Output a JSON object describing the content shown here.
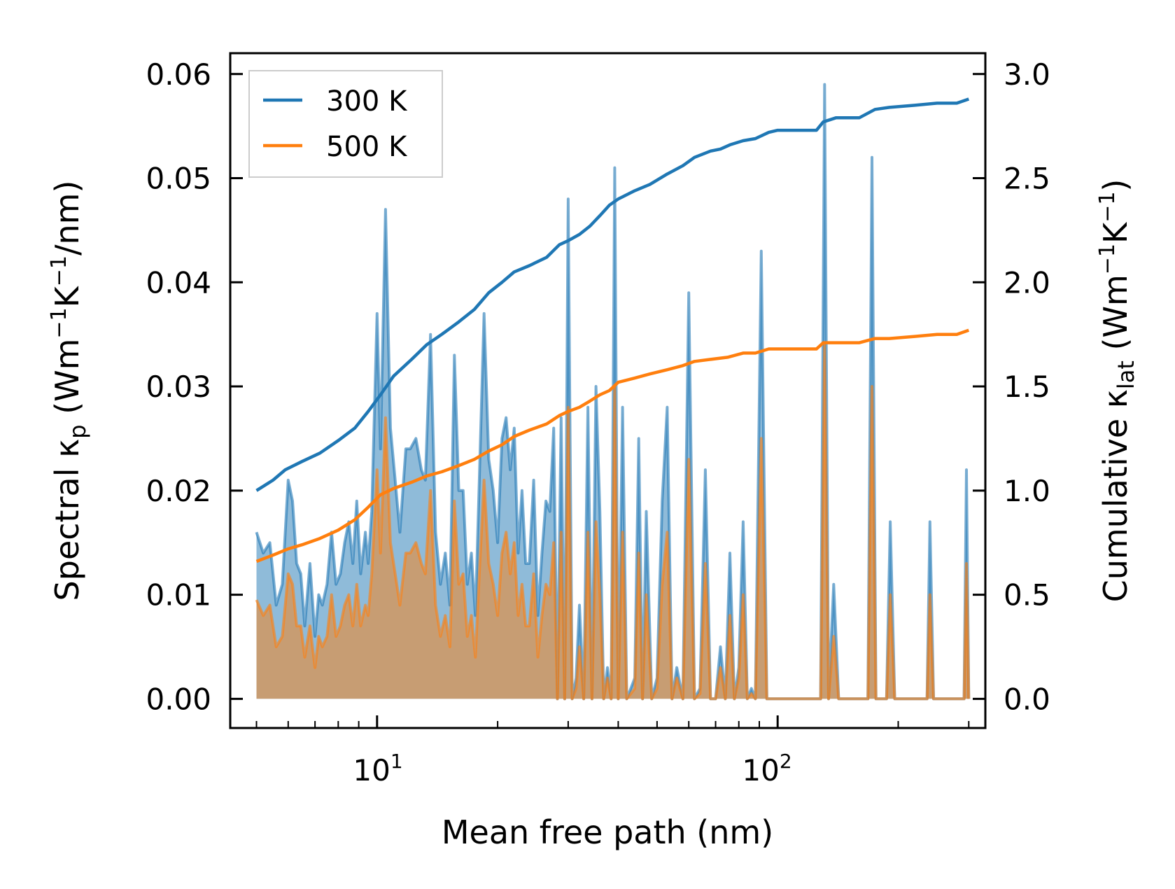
{
  "chart_data": {
    "type": "line",
    "xlabel": "Mean free path (nm)",
    "x_scale": "log",
    "xlim": [
      4.3,
      330
    ],
    "x_ticks": [
      10,
      100
    ],
    "x_tick_labels": [
      "10",
      "1",
      "10",
      "2"
    ],
    "y_left": {
      "label_main": "Spectral κ",
      "label_sub": "p",
      "label_unit_a": " (Wm",
      "label_sup_a": "−1",
      "label_unit_b": "K",
      "label_sup_b": "−1",
      "label_unit_c": "/nm)",
      "ylim": [
        -0.0028,
        0.062
      ],
      "ticks": [
        0.0,
        0.01,
        0.02,
        0.03,
        0.04,
        0.05,
        0.06
      ],
      "tick_labels": [
        "0.00",
        "0.01",
        "0.02",
        "0.03",
        "0.04",
        "0.05",
        "0.06"
      ]
    },
    "y_right": {
      "label_main": "Cumulative κ",
      "label_sub": "lat",
      "label_unit_a": " (Wm",
      "label_sup_a": "−1",
      "label_unit_b": "K",
      "label_sup_b": "−1",
      "label_unit_c": ")",
      "ylim": [
        -0.14,
        3.1
      ],
      "ticks": [
        0.0,
        0.5,
        1.0,
        1.5,
        2.0,
        2.5,
        3.0
      ],
      "tick_labels": [
        "0.0",
        "0.5",
        "1.0",
        "1.5",
        "2.0",
        "2.5",
        "3.0"
      ]
    },
    "legend": {
      "placement": "top-left",
      "entries": [
        "300 K",
        "500 K"
      ]
    },
    "series": [
      {
        "name": "300 K",
        "kind": "cumulative",
        "axis": "right",
        "color": "#1f77b4",
        "x": [
          5.0,
          5.5,
          5.9,
          6.5,
          7.2,
          8.0,
          8.8,
          9.5,
          10.2,
          11.0,
          12.2,
          13.3,
          14.5,
          16.0,
          17.5,
          19.0,
          20.5,
          22.0,
          24.0,
          26.5,
          28.5,
          30.0,
          32.0,
          34.0,
          36.0,
          38.0,
          40.0,
          44.0,
          48.0,
          53.0,
          58.0,
          62.0,
          68.0,
          72.0,
          76.0,
          82.0,
          88.0,
          95.0,
          100.0,
          110.0,
          125.0,
          130.0,
          140.0,
          160.0,
          175.0,
          190.0,
          220.0,
          250.0,
          280.0,
          300.0
        ],
        "values": [
          1.0,
          1.05,
          1.1,
          1.14,
          1.18,
          1.24,
          1.3,
          1.38,
          1.46,
          1.55,
          1.63,
          1.7,
          1.75,
          1.81,
          1.87,
          1.95,
          2.0,
          2.05,
          2.08,
          2.12,
          2.18,
          2.2,
          2.23,
          2.27,
          2.32,
          2.37,
          2.4,
          2.44,
          2.47,
          2.52,
          2.56,
          2.6,
          2.63,
          2.64,
          2.66,
          2.68,
          2.69,
          2.72,
          2.73,
          2.73,
          2.73,
          2.77,
          2.79,
          2.79,
          2.83,
          2.84,
          2.85,
          2.86,
          2.86,
          2.88
        ]
      },
      {
        "name": "500 K",
        "kind": "cumulative",
        "axis": "right",
        "color": "#ff7f0e",
        "x": [
          5.0,
          5.5,
          6.0,
          6.5,
          7.2,
          8.0,
          8.8,
          9.5,
          10.2,
          11.0,
          12.2,
          13.3,
          14.5,
          16.0,
          17.5,
          19.0,
          20.5,
          22.0,
          24.0,
          26.5,
          28.5,
          30.0,
          32.0,
          34.0,
          36.0,
          38.0,
          40.0,
          44.0,
          48.0,
          53.0,
          58.0,
          62.0,
          68.0,
          75.0,
          82.0,
          88.0,
          95.0,
          110.0,
          125.0,
          130.0,
          140.0,
          160.0,
          175.0,
          190.0,
          220.0,
          250.0,
          280.0,
          300.0
        ],
        "values": [
          0.66,
          0.69,
          0.72,
          0.74,
          0.77,
          0.81,
          0.86,
          0.92,
          0.98,
          1.01,
          1.04,
          1.07,
          1.09,
          1.12,
          1.15,
          1.19,
          1.22,
          1.26,
          1.29,
          1.32,
          1.36,
          1.38,
          1.4,
          1.43,
          1.46,
          1.48,
          1.52,
          1.54,
          1.56,
          1.58,
          1.6,
          1.62,
          1.63,
          1.64,
          1.66,
          1.66,
          1.68,
          1.68,
          1.68,
          1.71,
          1.71,
          1.71,
          1.73,
          1.73,
          1.74,
          1.75,
          1.75,
          1.77
        ]
      },
      {
        "name": "300 K spectral",
        "kind": "spectral",
        "axis": "left",
        "color": "#1f77b4",
        "x": [
          5.0,
          5.2,
          5.4,
          5.6,
          5.8,
          6.0,
          6.15,
          6.3,
          6.45,
          6.6,
          6.8,
          7.0,
          7.15,
          7.3,
          7.5,
          7.7,
          7.9,
          8.1,
          8.3,
          8.5,
          8.7,
          8.9,
          9.1,
          9.35,
          9.5,
          9.7,
          10.0,
          10.2,
          10.5,
          10.8,
          11.1,
          11.4,
          11.8,
          12.1,
          12.5,
          12.9,
          13.2,
          13.6,
          14.0,
          14.4,
          14.8,
          15.2,
          15.6,
          16.0,
          16.4,
          16.8,
          17.2,
          17.6,
          18.0,
          18.5,
          19.0,
          19.5,
          20.0,
          20.5,
          21.0,
          21.5,
          22.0,
          22.5,
          23.0,
          23.5,
          24.0,
          24.6,
          25.2,
          25.8,
          26.4,
          27.0,
          27.6,
          28.2,
          28.8,
          29.4,
          30.0,
          30.7,
          31.4,
          32.0,
          32.8,
          33.6,
          34.4,
          35.2,
          36.0,
          36.8,
          37.6,
          38.4,
          39.2,
          40.0,
          41.0,
          42.0,
          43.0,
          44.0,
          45.0,
          46.0,
          47.0,
          48.5,
          50.0,
          51.5,
          53.0,
          54.5,
          56.0,
          58.0,
          60.0,
          62.0,
          64.0,
          66.0,
          68.0,
          70.0,
          72.0,
          74.0,
          76.0,
          78.0,
          80.0,
          82.0,
          84.0,
          86.0,
          88.0,
          91.0,
          94.0,
          97.0,
          100.0,
          110.0,
          122.0,
          128.0,
          131.0,
          134.0,
          138.0,
          142.0,
          160.0,
          168.0,
          172.0,
          176.0,
          182.0,
          187.0,
          191.0,
          196.0,
          230.0,
          236.0,
          240.0,
          245.0,
          285.0,
          292.0,
          296.0,
          300.0
        ],
        "values": [
          0.016,
          0.014,
          0.015,
          0.009,
          0.011,
          0.021,
          0.019,
          0.013,
          0.012,
          0.007,
          0.013,
          0.006,
          0.01,
          0.009,
          0.011,
          0.016,
          0.011,
          0.012,
          0.015,
          0.017,
          0.013,
          0.019,
          0.012,
          0.016,
          0.013,
          0.018,
          0.037,
          0.024,
          0.047,
          0.026,
          0.021,
          0.016,
          0.024,
          0.024,
          0.025,
          0.022,
          0.021,
          0.035,
          0.016,
          0.011,
          0.014,
          0.009,
          0.033,
          0.02,
          0.02,
          0.011,
          0.014,
          0.008,
          0.021,
          0.037,
          0.023,
          0.02,
          0.015,
          0.025,
          0.027,
          0.022,
          0.026,
          0.014,
          0.02,
          0.013,
          0.013,
          0.021,
          0.008,
          0.014,
          0.019,
          0.018,
          0.026,
          0.0,
          0.027,
          0.0,
          0.048,
          0.0,
          0.002,
          0.009,
          0.0,
          0.028,
          0.0,
          0.03,
          0.018,
          0.0,
          0.003,
          0.0,
          0.051,
          0.0,
          0.028,
          0.0,
          0.001,
          0.002,
          0.025,
          0.0,
          0.018,
          0.0,
          0.002,
          0.019,
          0.028,
          0.0,
          0.003,
          0.0,
          0.039,
          0.0,
          0.001,
          0.022,
          0.0,
          0.0,
          0.005,
          0.0,
          0.014,
          0.0,
          0.003,
          0.017,
          0.0,
          0.001,
          0.0,
          0.043,
          0.0,
          0.0,
          0.0,
          0.0,
          0.0,
          0.0,
          0.059,
          0.0,
          0.011,
          0.0,
          0.0,
          0.0,
          0.052,
          0.0,
          0.0,
          0.0,
          0.017,
          0.0,
          0.0,
          0.0,
          0.017,
          0.0,
          0.0,
          0.0,
          0.022,
          0.0
        ]
      },
      {
        "name": "500 K spectral",
        "kind": "spectral",
        "axis": "left",
        "color": "#ff7f0e",
        "x": [
          5.0,
          5.2,
          5.4,
          5.6,
          5.8,
          6.0,
          6.15,
          6.3,
          6.45,
          6.6,
          6.8,
          7.0,
          7.15,
          7.3,
          7.5,
          7.7,
          7.9,
          8.1,
          8.3,
          8.5,
          8.7,
          8.9,
          9.1,
          9.35,
          9.5,
          9.7,
          10.0,
          10.2,
          10.5,
          10.8,
          11.1,
          11.4,
          11.8,
          12.1,
          12.5,
          12.9,
          13.2,
          13.6,
          14.0,
          14.4,
          14.8,
          15.2,
          15.6,
          16.0,
          16.4,
          16.8,
          17.2,
          17.6,
          18.0,
          18.5,
          19.0,
          19.5,
          20.0,
          20.5,
          21.0,
          21.5,
          22.0,
          22.5,
          23.0,
          23.5,
          24.0,
          24.6,
          25.2,
          25.8,
          26.4,
          27.0,
          27.6,
          28.2,
          28.8,
          29.4,
          30.0,
          30.7,
          31.4,
          32.0,
          32.8,
          33.6,
          34.4,
          35.2,
          36.0,
          36.8,
          37.6,
          38.4,
          39.2,
          40.0,
          41.0,
          42.0,
          43.0,
          44.0,
          45.0,
          46.0,
          47.0,
          48.5,
          50.0,
          51.5,
          53.0,
          54.5,
          56.0,
          58.0,
          60.0,
          62.0,
          64.0,
          66.0,
          68.0,
          70.0,
          72.0,
          74.0,
          76.0,
          78.0,
          80.0,
          82.0,
          84.0,
          86.0,
          88.0,
          91.0,
          94.0,
          97.0,
          100.0,
          110.0,
          122.0,
          128.0,
          131.0,
          134.0,
          138.0,
          142.0,
          160.0,
          168.0,
          172.0,
          176.0,
          182.0,
          187.0,
          191.0,
          196.0,
          230.0,
          236.0,
          240.0,
          245.0,
          285.0,
          292.0,
          296.0,
          300.0
        ],
        "values": [
          0.0095,
          0.008,
          0.009,
          0.005,
          0.006,
          0.012,
          0.011,
          0.007,
          0.007,
          0.004,
          0.007,
          0.003,
          0.006,
          0.005,
          0.006,
          0.01,
          0.006,
          0.007,
          0.009,
          0.01,
          0.007,
          0.011,
          0.007,
          0.009,
          0.008,
          0.012,
          0.022,
          0.014,
          0.027,
          0.015,
          0.012,
          0.009,
          0.014,
          0.014,
          0.015,
          0.013,
          0.012,
          0.02,
          0.009,
          0.006,
          0.008,
          0.005,
          0.019,
          0.011,
          0.012,
          0.006,
          0.008,
          0.004,
          0.012,
          0.021,
          0.013,
          0.011,
          0.008,
          0.014,
          0.016,
          0.012,
          0.015,
          0.008,
          0.011,
          0.007,
          0.007,
          0.012,
          0.004,
          0.008,
          0.011,
          0.01,
          0.015,
          0.0,
          0.016,
          0.0,
          0.028,
          0.0,
          0.001,
          0.005,
          0.0,
          0.016,
          0.0,
          0.017,
          0.01,
          0.0,
          0.002,
          0.0,
          0.03,
          0.0,
          0.016,
          0.0,
          0.0005,
          0.001,
          0.014,
          0.0,
          0.01,
          0.0,
          0.001,
          0.011,
          0.016,
          0.0,
          0.002,
          0.0,
          0.023,
          0.0,
          0.0005,
          0.013,
          0.0,
          0.0,
          0.003,
          0.0,
          0.008,
          0.0,
          0.002,
          0.01,
          0.0,
          0.0005,
          0.0,
          0.025,
          0.0,
          0.0,
          0.0,
          0.0,
          0.0,
          0.0,
          0.034,
          0.0,
          0.006,
          0.0,
          0.0,
          0.0,
          0.03,
          0.0,
          0.0,
          0.0,
          0.01,
          0.0,
          0.0,
          0.0,
          0.01,
          0.0,
          0.0,
          0.0,
          0.013,
          0.0
        ]
      }
    ]
  }
}
